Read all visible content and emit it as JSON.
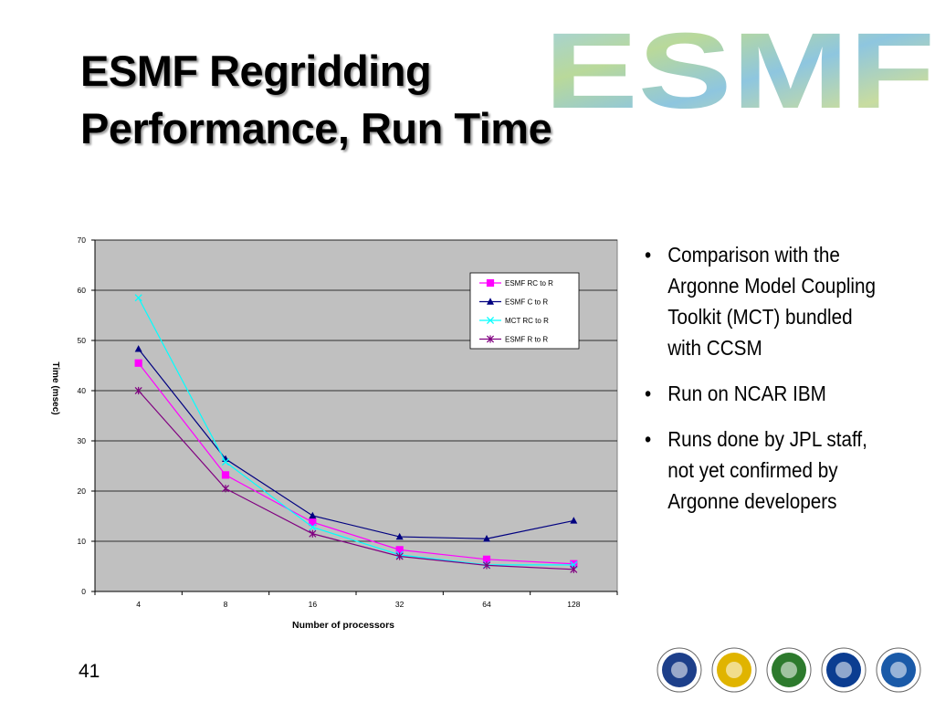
{
  "slide": {
    "title_line1": "ESMF Regridding",
    "title_line2": "Performance, Run Time",
    "logo_text": "ESMF",
    "page_number": "41"
  },
  "bullets": [
    "Comparison with the Argonne Model Coupling Toolkit (MCT) bundled with CCSM",
    "Run on NCAR IBM",
    "Runs done by JPL staff, not yet confirmed by Argonne developers"
  ],
  "footer_seals": [
    {
      "name": "dod-seal-icon",
      "color": "#1d3f8a"
    },
    {
      "name": "nsf-seal-icon",
      "color": "#e0b400"
    },
    {
      "name": "doe-seal-icon",
      "color": "#2d7a2d"
    },
    {
      "name": "nasa-seal-icon",
      "color": "#0b3d91"
    },
    {
      "name": "noaa-seal-icon",
      "color": "#1a5aa8"
    }
  ],
  "chart_data": {
    "type": "line",
    "categories": [
      "4",
      "8",
      "16",
      "32",
      "64",
      "128"
    ],
    "xlabel": "Number of processors",
    "ylabel": "Time (msec)",
    "ylim": [
      0,
      70
    ],
    "yticks": [
      0,
      10,
      20,
      30,
      40,
      50,
      60,
      70
    ],
    "grid": true,
    "plot_background": "#c0c0c0",
    "legend_position": "top-right",
    "series": [
      {
        "name": "ESMF RC to R",
        "color": "#ff00ff",
        "marker": "square",
        "values": [
          45.5,
          23.2,
          13.8,
          8.3,
          6.4,
          5.5
        ]
      },
      {
        "name": "ESMF C to R",
        "color": "#000080",
        "marker": "triangle",
        "values": [
          48.3,
          26.4,
          15.1,
          10.9,
          10.5,
          14.1
        ]
      },
      {
        "name": "MCT RC to R",
        "color": "#00ffff",
        "marker": "x",
        "values": [
          58.5,
          25.8,
          12.8,
          7.3,
          5.3,
          5.3
        ]
      },
      {
        "name": "ESMF R to R",
        "color": "#800080",
        "marker": "star",
        "values": [
          40.0,
          20.5,
          11.5,
          7.0,
          5.2,
          4.4
        ]
      }
    ]
  }
}
